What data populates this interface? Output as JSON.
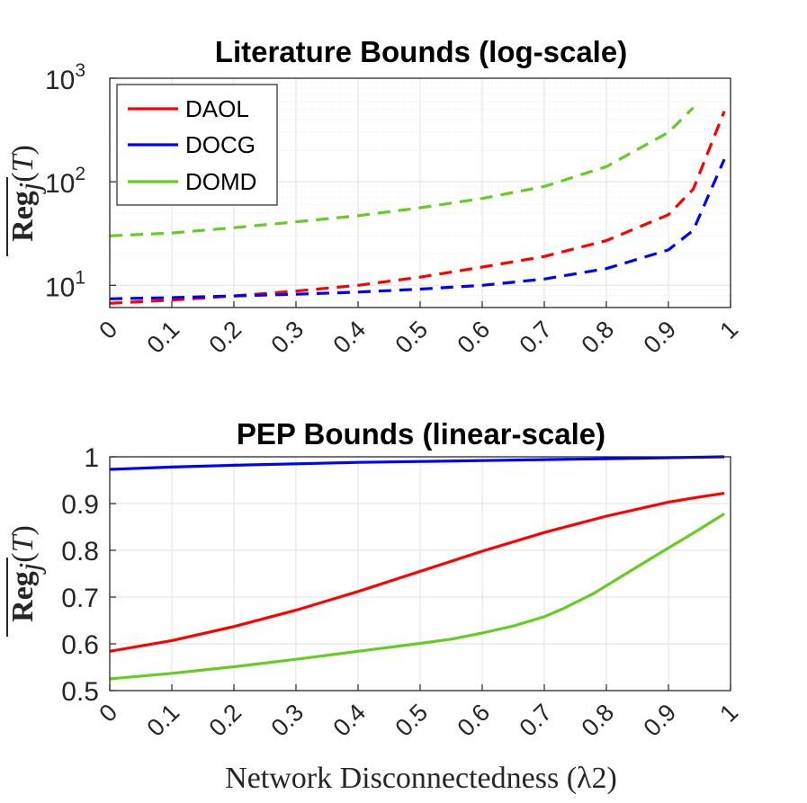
{
  "chart_data": [
    {
      "type": "line",
      "title": "Literature Bounds (log-scale)",
      "xlabel": "",
      "ylabel": "Reg_j(T)",
      "xlim": [
        0,
        1
      ],
      "ylim": [
        6.1,
        1000
      ],
      "yscale": "log",
      "xticks": [
        "0",
        "0.1",
        "0.2",
        "0.3",
        "0.4",
        "0.5",
        "0.6",
        "0.7",
        "0.8",
        "0.9",
        "1"
      ],
      "yticks": [
        {
          "value": 10,
          "base": "10",
          "exp": "1"
        },
        {
          "value": 100,
          "base": "10",
          "exp": "2"
        },
        {
          "value": 1000,
          "base": "10",
          "exp": "3"
        }
      ],
      "grid": true,
      "line_style": "dashed",
      "legend": {
        "position": "top-left",
        "entries": [
          "DAOL",
          "DOCG",
          "DOMD"
        ]
      },
      "series": [
        {
          "name": "DAOL",
          "color": "#ff0000",
          "x": [
            0,
            0.1,
            0.2,
            0.3,
            0.4,
            0.5,
            0.6,
            0.7,
            0.8,
            0.9,
            0.94,
            0.99
          ],
          "y": [
            6.7,
            7.2,
            7.9,
            8.8,
            10,
            12,
            15,
            19,
            27,
            48,
            85,
            480
          ]
        },
        {
          "name": "DOCG",
          "color": "#0000ff",
          "x": [
            0,
            0.1,
            0.2,
            0.3,
            0.4,
            0.5,
            0.6,
            0.7,
            0.8,
            0.9,
            0.94,
            0.99
          ],
          "y": [
            7.4,
            7.6,
            7.9,
            8.2,
            8.6,
            9.2,
            10,
            11.5,
            14.5,
            22,
            34,
            165
          ]
        },
        {
          "name": "DOMD",
          "color": "#66cc22",
          "x": [
            0,
            0.1,
            0.2,
            0.3,
            0.4,
            0.5,
            0.6,
            0.7,
            0.8,
            0.9,
            0.94
          ],
          "y": [
            30,
            32,
            36,
            41,
            47,
            56,
            69,
            90,
            140,
            300,
            520
          ]
        }
      ]
    },
    {
      "type": "line",
      "title": "PEP Bounds (linear-scale)",
      "xlabel": "Network Disconnectedness (λ2)",
      "ylabel": "Reg_j(T)",
      "xlim": [
        0,
        1
      ],
      "ylim": [
        0.5,
        1
      ],
      "yscale": "linear",
      "xticks": [
        "0",
        "0.1",
        "0.2",
        "0.3",
        "0.4",
        "0.5",
        "0.6",
        "0.7",
        "0.8",
        "0.9",
        "1"
      ],
      "yticks": [
        "0.5",
        "0.6",
        "0.7",
        "0.8",
        "0.9",
        "1"
      ],
      "grid": true,
      "line_style": "solid",
      "series": [
        {
          "name": "DOCG",
          "color": "#0000ff",
          "x": [
            0,
            0.1,
            0.2,
            0.3,
            0.4,
            0.5,
            0.6,
            0.7,
            0.8,
            0.9,
            0.99
          ],
          "y": [
            0.973,
            0.978,
            0.982,
            0.985,
            0.988,
            0.99,
            0.992,
            0.994,
            0.996,
            0.998,
            1.0
          ]
        },
        {
          "name": "DAOL",
          "color": "#ff0000",
          "x": [
            0,
            0.1,
            0.2,
            0.3,
            0.4,
            0.5,
            0.6,
            0.7,
            0.8,
            0.9,
            0.95,
            0.99
          ],
          "y": [
            0.584,
            0.607,
            0.637,
            0.672,
            0.712,
            0.755,
            0.798,
            0.838,
            0.873,
            0.903,
            0.914,
            0.922
          ]
        },
        {
          "name": "DOMD",
          "color": "#66cc22",
          "x": [
            0,
            0.1,
            0.2,
            0.3,
            0.4,
            0.5,
            0.55,
            0.6,
            0.65,
            0.7,
            0.73,
            0.78,
            0.85,
            0.9,
            0.95,
            0.99
          ],
          "y": [
            0.525,
            0.537,
            0.551,
            0.567,
            0.584,
            0.601,
            0.61,
            0.623,
            0.638,
            0.658,
            0.675,
            0.708,
            0.765,
            0.805,
            0.845,
            0.878
          ]
        }
      ]
    }
  ]
}
